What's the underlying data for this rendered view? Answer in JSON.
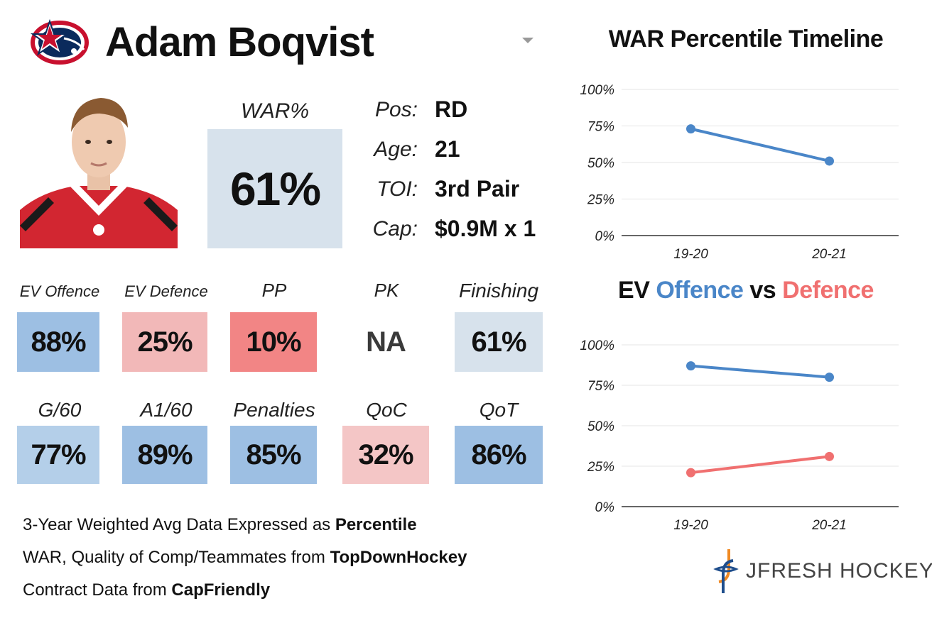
{
  "header": {
    "player_name": "Adam Boqvist",
    "team_logo": "blue-jackets-logo",
    "dropdown_icon": "chevron-down-icon"
  },
  "player_photo": "player-headshot",
  "war": {
    "label": "WAR%",
    "value": "61%",
    "color": "#d7e2ec"
  },
  "info": [
    {
      "label": "Pos:",
      "value": "RD"
    },
    {
      "label": "Age:",
      "value": "21"
    },
    {
      "label": "TOI:",
      "value": "3rd Pair"
    },
    {
      "label": "Cap:",
      "value": "$0.9M x 1"
    }
  ],
  "stats_row1": [
    {
      "label": "EV Offence",
      "value": "88%",
      "color": "#9dbfe3"
    },
    {
      "label": "EV Defence",
      "value": "25%",
      "color": "#f2b8b8"
    },
    {
      "label": "PP",
      "value": "10%",
      "color": "#f28585"
    },
    {
      "label": "PK",
      "value": "NA",
      "color": "#ffffff"
    },
    {
      "label": "Finishing",
      "value": "61%",
      "color": "#d7e2ec"
    }
  ],
  "stats_row2": [
    {
      "label": "G/60",
      "value": "77%",
      "color": "#b4cfe9"
    },
    {
      "label": "A1/60",
      "value": "89%",
      "color": "#9dbfe3"
    },
    {
      "label": "Penalties",
      "value": "85%",
      "color": "#9dbfe3"
    },
    {
      "label": "QoC",
      "value": "32%",
      "color": "#f4c6c6"
    },
    {
      "label": "QoT",
      "value": "86%",
      "color": "#9dbfe3"
    }
  ],
  "notes": [
    {
      "text": "3-Year Weighted Avg Data Expressed as ",
      "bold": "Percentile"
    },
    {
      "text": "WAR, Quality of Comp/Teammates from ",
      "bold": "TopDownHockey"
    },
    {
      "text": "Contract Data from ",
      "bold": "CapFriendly"
    }
  ],
  "brand": {
    "name": "JFRESH HOCKEY",
    "icon": "jfresh-logo-icon"
  },
  "chart_data": [
    {
      "type": "line",
      "title": "WAR Percentile Timeline",
      "x": [
        "19-20",
        "20-21"
      ],
      "yticks": [
        "100%",
        "75%",
        "50%",
        "25%",
        "0%"
      ],
      "ylim": [
        0,
        100
      ],
      "grid": true,
      "series": [
        {
          "values": [
            73,
            51
          ],
          "color": "#4a86c8"
        }
      ]
    },
    {
      "type": "line",
      "title": "EV Offence vs Defence",
      "title_parts": [
        "EV ",
        "Offence",
        " vs ",
        "Defence"
      ],
      "x": [
        "19-20",
        "20-21"
      ],
      "yticks": [
        "100%",
        "75%",
        "50%",
        "25%",
        "0%"
      ],
      "ylim": [
        0,
        100
      ],
      "grid": true,
      "series": [
        {
          "name": "Offence",
          "values": [
            87,
            80
          ],
          "color": "#4a86c8"
        },
        {
          "name": "Defence",
          "values": [
            21,
            31
          ],
          "color": "#f07070"
        }
      ]
    }
  ]
}
